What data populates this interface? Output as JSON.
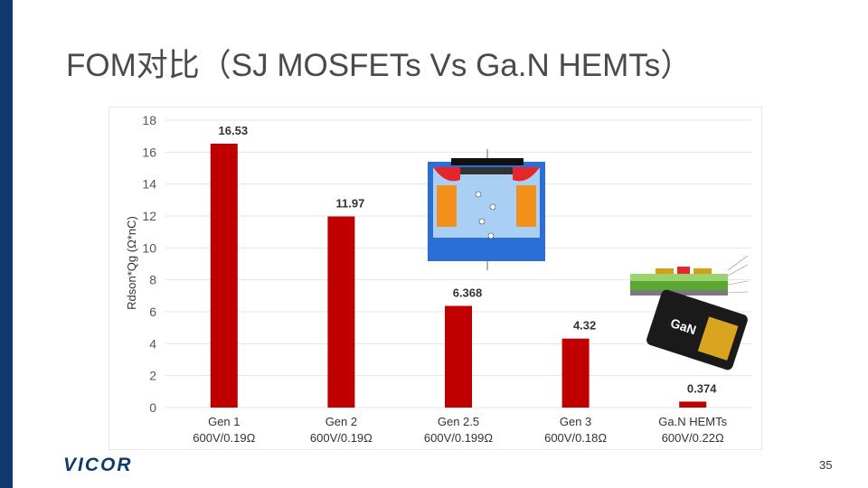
{
  "slide": {
    "title": "FOM对比（SJ MOSFETs Vs Ga.N HEMTs）",
    "logo": "VICOR",
    "page_number": "35"
  },
  "colors": {
    "bar": "#c00000",
    "left_bar": "#0f3a6b",
    "grid": "#e4e4e4"
  },
  "chart_data": {
    "type": "bar",
    "title": "",
    "xlabel": "",
    "ylabel": "Rdson*Qg (Ω*nC)",
    "ylim": [
      0,
      18
    ],
    "yticks": [
      0,
      2,
      4,
      6,
      8,
      10,
      12,
      14,
      16,
      18
    ],
    "grid": true,
    "categories": [
      [
        "Gen 1",
        "600V/0.19Ω"
      ],
      [
        "Gen 2",
        "600V/0.19Ω"
      ],
      [
        "Gen 2.5",
        "600V/0.199Ω"
      ],
      [
        "Gen 3",
        "600V/0.18Ω"
      ],
      [
        "Ga.N HEMTs",
        "600V/0.22Ω"
      ]
    ],
    "values": [
      16.53,
      11.97,
      6.368,
      4.32,
      0.374
    ],
    "data_labels": [
      "16.53",
      "11.97",
      "6.368",
      "4.32",
      "0.374"
    ]
  },
  "illustrations": {
    "sj_mosfet_cross_section": "sj-mosfet-cross-section",
    "gan_hemt_layer_stack": "gan-hemt-layer-stack",
    "gan_package_chip": "gan-package-chip",
    "chip_marking": "GaN"
  }
}
